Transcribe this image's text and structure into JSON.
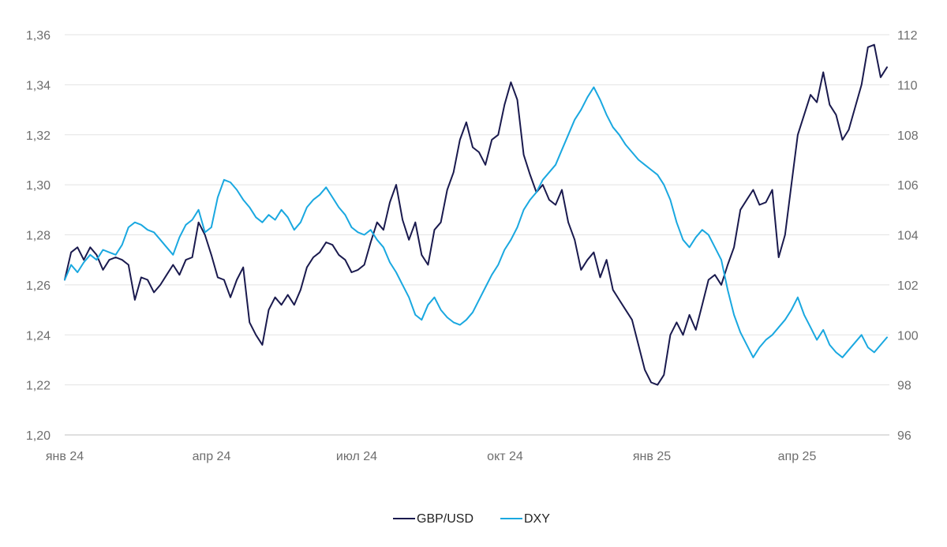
{
  "chart_data": {
    "type": "line",
    "title": "",
    "xlabel": "",
    "ylabel": "",
    "x_ticks": [
      "янв 24",
      "апр 24",
      "июл 24",
      "окт 24",
      "янв 25",
      "апр 25"
    ],
    "y_left": {
      "min": 1.2,
      "max": 1.36,
      "ticks": [
        "1,20",
        "1,22",
        "1,24",
        "1,26",
        "1,28",
        "1,30",
        "1,32",
        "1,34",
        "1,36"
      ]
    },
    "y_right": {
      "min": 96,
      "max": 112,
      "ticks": [
        "96",
        "98",
        "100",
        "102",
        "104",
        "106",
        "108",
        "110",
        "112"
      ]
    },
    "grid": true,
    "legend_position": "bottom",
    "series": [
      {
        "name": "GBP/USD",
        "axis": "left",
        "color": "#1a1a4e",
        "points": [
          [
            "янв 24",
            1.262
          ],
          [
            "",
            1.273
          ],
          [
            "",
            1.275
          ],
          [
            "",
            1.27
          ],
          [
            "",
            1.275
          ],
          [
            "",
            1.272
          ],
          [
            "",
            1.266
          ],
          [
            "",
            1.27
          ],
          [
            "",
            1.271
          ],
          [
            "",
            1.27
          ],
          [
            "",
            1.268
          ],
          [
            "",
            1.254
          ],
          [
            "",
            1.263
          ],
          [
            "",
            1.262
          ],
          [
            "",
            1.257
          ],
          [
            "",
            1.26
          ],
          [
            "",
            1.264
          ],
          [
            "",
            1.268
          ],
          [
            "",
            1.264
          ],
          [
            "",
            1.27
          ],
          [
            "",
            1.271
          ],
          [
            "",
            1.285
          ],
          [
            "",
            1.28
          ],
          [
            "",
            1.272
          ],
          [
            "апр 24",
            1.263
          ],
          [
            "",
            1.262
          ],
          [
            "",
            1.255
          ],
          [
            "",
            1.262
          ],
          [
            "",
            1.267
          ],
          [
            "",
            1.245
          ],
          [
            "",
            1.24
          ],
          [
            "",
            1.236
          ],
          [
            "",
            1.25
          ],
          [
            "",
            1.255
          ],
          [
            "",
            1.252
          ],
          [
            "",
            1.256
          ],
          [
            "",
            1.252
          ],
          [
            "",
            1.258
          ],
          [
            "",
            1.267
          ],
          [
            "",
            1.271
          ],
          [
            "",
            1.273
          ],
          [
            "",
            1.277
          ],
          [
            "",
            1.276
          ],
          [
            "",
            1.272
          ],
          [
            "",
            1.27
          ],
          [
            "",
            1.265
          ],
          [
            "",
            1.266
          ],
          [
            "июл 24",
            1.268
          ],
          [
            "",
            1.277
          ],
          [
            "",
            1.285
          ],
          [
            "",
            1.282
          ],
          [
            "",
            1.293
          ],
          [
            "",
            1.3
          ],
          [
            "",
            1.286
          ],
          [
            "",
            1.278
          ],
          [
            "",
            1.285
          ],
          [
            "",
            1.272
          ],
          [
            "",
            1.268
          ],
          [
            "",
            1.282
          ],
          [
            "",
            1.285
          ],
          [
            "",
            1.298
          ],
          [
            "",
            1.305
          ],
          [
            "",
            1.318
          ],
          [
            "",
            1.325
          ],
          [
            "",
            1.315
          ],
          [
            "",
            1.313
          ],
          [
            "",
            1.308
          ],
          [
            "",
            1.318
          ],
          [
            "",
            1.32
          ],
          [
            "",
            1.332
          ],
          [
            "",
            1.341
          ],
          [
            "окт 24",
            1.334
          ],
          [
            "",
            1.312
          ],
          [
            "",
            1.304
          ],
          [
            "",
            1.297
          ],
          [
            "",
            1.3
          ],
          [
            "",
            1.294
          ],
          [
            "",
            1.292
          ],
          [
            "",
            1.298
          ],
          [
            "",
            1.285
          ],
          [
            "",
            1.278
          ],
          [
            "",
            1.266
          ],
          [
            "",
            1.27
          ],
          [
            "",
            1.273
          ],
          [
            "",
            1.263
          ],
          [
            "",
            1.27
          ],
          [
            "",
            1.258
          ],
          [
            "",
            1.254
          ],
          [
            "",
            1.25
          ],
          [
            "",
            1.246
          ],
          [
            "",
            1.236
          ],
          [
            "",
            1.226
          ],
          [
            "",
            1.221
          ],
          [
            "",
            1.22
          ],
          [
            "янв 25",
            1.224
          ],
          [
            "",
            1.24
          ],
          [
            "",
            1.245
          ],
          [
            "",
            1.24
          ],
          [
            "",
            1.248
          ],
          [
            "",
            1.242
          ],
          [
            "",
            1.252
          ],
          [
            "",
            1.262
          ],
          [
            "",
            1.264
          ],
          [
            "",
            1.26
          ],
          [
            "",
            1.268
          ],
          [
            "",
            1.275
          ],
          [
            "",
            1.29
          ],
          [
            "",
            1.294
          ],
          [
            "",
            1.298
          ],
          [
            "",
            1.292
          ],
          [
            "",
            1.293
          ],
          [
            "",
            1.298
          ],
          [
            "",
            1.271
          ],
          [
            "",
            1.28
          ],
          [
            "",
            1.3
          ],
          [
            "",
            1.32
          ],
          [
            "",
            1.328
          ],
          [
            "",
            1.336
          ],
          [
            "апр 25",
            1.333
          ],
          [
            "",
            1.345
          ],
          [
            "",
            1.332
          ],
          [
            "",
            1.328
          ],
          [
            "",
            1.318
          ],
          [
            "",
            1.322
          ],
          [
            "",
            1.331
          ],
          [
            "",
            1.34
          ],
          [
            "",
            1.355
          ],
          [
            "",
            1.356
          ],
          [
            "",
            1.343
          ],
          [
            "",
            1.347
          ]
        ]
      },
      {
        "name": "DXY",
        "axis": "right",
        "color": "#1aa8e0",
        "points": [
          [
            "янв 24",
            102.2
          ],
          [
            "",
            102.8
          ],
          [
            "",
            102.5
          ],
          [
            "",
            102.9
          ],
          [
            "",
            103.2
          ],
          [
            "",
            103.0
          ],
          [
            "",
            103.4
          ],
          [
            "",
            103.3
          ],
          [
            "",
            103.2
          ],
          [
            "",
            103.6
          ],
          [
            "",
            104.3
          ],
          [
            "",
            104.5
          ],
          [
            "",
            104.4
          ],
          [
            "",
            104.2
          ],
          [
            "",
            104.1
          ],
          [
            "",
            103.8
          ],
          [
            "",
            103.5
          ],
          [
            "",
            103.2
          ],
          [
            "",
            103.9
          ],
          [
            "",
            104.4
          ],
          [
            "",
            104.6
          ],
          [
            "",
            105.0
          ],
          [
            "",
            104.1
          ],
          [
            "",
            104.3
          ],
          [
            "апр 24",
            105.5
          ],
          [
            "",
            106.2
          ],
          [
            "",
            106.1
          ],
          [
            "",
            105.8
          ],
          [
            "",
            105.4
          ],
          [
            "",
            105.1
          ],
          [
            "",
            104.7
          ],
          [
            "",
            104.5
          ],
          [
            "",
            104.8
          ],
          [
            "",
            104.6
          ],
          [
            "",
            105.0
          ],
          [
            "",
            104.7
          ],
          [
            "",
            104.2
          ],
          [
            "",
            104.5
          ],
          [
            "",
            105.1
          ],
          [
            "",
            105.4
          ],
          [
            "",
            105.6
          ],
          [
            "",
            105.9
          ],
          [
            "",
            105.5
          ],
          [
            "",
            105.1
          ],
          [
            "",
            104.8
          ],
          [
            "",
            104.3
          ],
          [
            "",
            104.1
          ],
          [
            "июл 24",
            104.0
          ],
          [
            "",
            104.2
          ],
          [
            "",
            103.8
          ],
          [
            "",
            103.5
          ],
          [
            "",
            102.9
          ],
          [
            "",
            102.5
          ],
          [
            "",
            102.0
          ],
          [
            "",
            101.5
          ],
          [
            "",
            100.8
          ],
          [
            "",
            100.6
          ],
          [
            "",
            101.2
          ],
          [
            "",
            101.5
          ],
          [
            "",
            101.0
          ],
          [
            "",
            100.7
          ],
          [
            "",
            100.5
          ],
          [
            "",
            100.4
          ],
          [
            "",
            100.6
          ],
          [
            "",
            100.9
          ],
          [
            "",
            101.4
          ],
          [
            "",
            101.9
          ],
          [
            "",
            102.4
          ],
          [
            "",
            102.8
          ],
          [
            "",
            103.4
          ],
          [
            "",
            103.8
          ],
          [
            "окт 24",
            104.3
          ],
          [
            "",
            105.0
          ],
          [
            "",
            105.4
          ],
          [
            "",
            105.7
          ],
          [
            "",
            106.2
          ],
          [
            "",
            106.5
          ],
          [
            "",
            106.8
          ],
          [
            "",
            107.4
          ],
          [
            "",
            108.0
          ],
          [
            "",
            108.6
          ],
          [
            "",
            109.0
          ],
          [
            "",
            109.5
          ],
          [
            "",
            109.9
          ],
          [
            "",
            109.4
          ],
          [
            "",
            108.8
          ],
          [
            "",
            108.3
          ],
          [
            "",
            108.0
          ],
          [
            "",
            107.6
          ],
          [
            "",
            107.3
          ],
          [
            "",
            107.0
          ],
          [
            "",
            106.8
          ],
          [
            "",
            106.6
          ],
          [
            "",
            106.4
          ],
          [
            "янв 25",
            106.0
          ],
          [
            "",
            105.4
          ],
          [
            "",
            104.5
          ],
          [
            "",
            103.8
          ],
          [
            "",
            103.5
          ],
          [
            "",
            103.9
          ],
          [
            "",
            104.2
          ],
          [
            "",
            104.0
          ],
          [
            "",
            103.5
          ],
          [
            "",
            103.0
          ],
          [
            "",
            101.8
          ],
          [
            "",
            100.8
          ],
          [
            "",
            100.1
          ],
          [
            "",
            99.6
          ],
          [
            "",
            99.1
          ],
          [
            "",
            99.5
          ],
          [
            "",
            99.8
          ],
          [
            "",
            100.0
          ],
          [
            "",
            100.3
          ],
          [
            "",
            100.6
          ],
          [
            "",
            101.0
          ],
          [
            "",
            101.5
          ],
          [
            "",
            100.8
          ],
          [
            "",
            100.3
          ],
          [
            "апр 25",
            99.8
          ],
          [
            "",
            100.2
          ],
          [
            "",
            99.6
          ],
          [
            "",
            99.3
          ],
          [
            "",
            99.1
          ],
          [
            "",
            99.4
          ],
          [
            "",
            99.7
          ],
          [
            "",
            100.0
          ],
          [
            "",
            99.5
          ],
          [
            "",
            99.3
          ],
          [
            "",
            99.6
          ],
          [
            "",
            99.9
          ]
        ]
      }
    ]
  }
}
